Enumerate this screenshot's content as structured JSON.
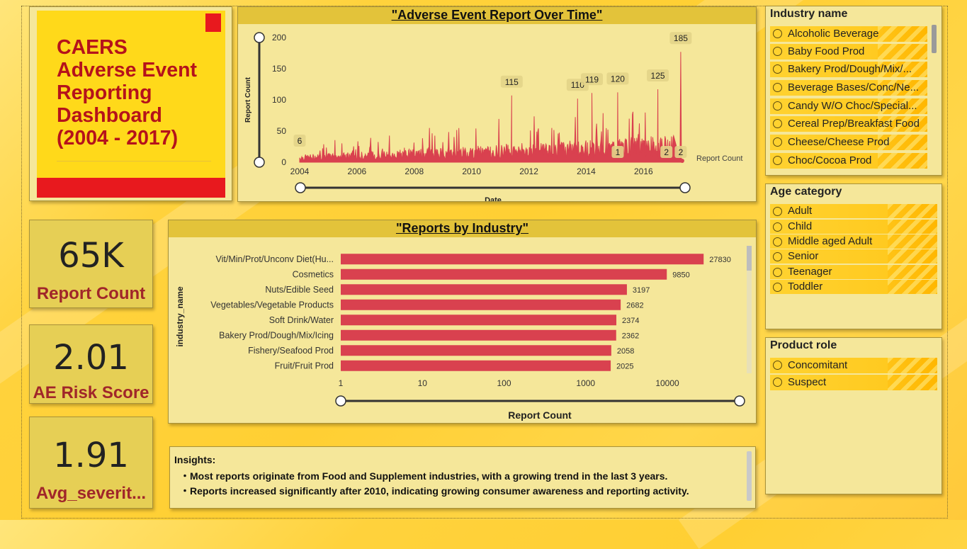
{
  "title_card": {
    "lines": [
      "CAERS",
      "Adverse Event",
      "Reporting",
      "Dashboard",
      "(2004 - 2017)"
    ]
  },
  "kpis": [
    {
      "value": "65K",
      "label": "Report Count"
    },
    {
      "value": "2.01",
      "label": "AE  Risk  Score"
    },
    {
      "value": "1.91",
      "label": "Avg_severit..."
    }
  ],
  "line_chart_title": "\"Adverse Event Report Over Time\"",
  "bar_chart_title": "\"Reports by Industry\"",
  "chart_data": [
    {
      "type": "line",
      "title": "\"Adverse Event Report Over Time\"",
      "xlabel": "Date",
      "ylabel": "Report Count",
      "legend": "Report Count",
      "ylim": [
        0,
        200
      ],
      "yticks": [
        "0",
        "50",
        "100",
        "150",
        "200"
      ],
      "xticks": [
        "2004",
        "2006",
        "2008",
        "2010",
        "2012",
        "2014",
        "2016"
      ],
      "x_range": [
        "2004",
        "2017"
      ],
      "annotations": [
        {
          "year": 2004.0,
          "value": 6,
          "label": "6"
        },
        {
          "year": 2011.4,
          "value": 115,
          "label": "115"
        },
        {
          "year": 2013.7,
          "value": 110,
          "label": "110"
        },
        {
          "year": 2014.2,
          "value": 119,
          "label": "119"
        },
        {
          "year": 2015.1,
          "value": 120,
          "label": "120"
        },
        {
          "year": 2016.5,
          "value": 125,
          "label": "125"
        },
        {
          "year": 2015.1,
          "value": 1,
          "label": "1"
        },
        {
          "year": 2016.8,
          "value": 2,
          "label": "2"
        },
        {
          "year": 2017.3,
          "value": 2,
          "label": "2"
        },
        {
          "year": 2017.3,
          "value": 185,
          "label": "185"
        }
      ],
      "color": "#d9414f"
    },
    {
      "type": "bar",
      "orientation": "horizontal",
      "title": "\"Reports by Industry\"",
      "xlabel": "Report Count",
      "ylabel": "industry_name",
      "xscale": "log",
      "xticks": [
        "1",
        "10",
        "100",
        "1000",
        "10000"
      ],
      "categories": [
        "Vit/Min/Prot/Unconv Diet(Hu...",
        "Cosmetics",
        "Nuts/Edible Seed",
        "Vegetables/Vegetable Products",
        "Soft Drink/Water",
        "Bakery Prod/Dough/Mix/Icing",
        "Fishery/Seafood Prod",
        "Fruit/Fruit Prod"
      ],
      "values": [
        27830,
        9850,
        3197,
        2682,
        2374,
        2362,
        2058,
        2025
      ],
      "color": "#d9414f"
    }
  ],
  "industry_slicer": {
    "title": "Industry name",
    "items": [
      "Alcoholic Beverage",
      "Baby Food Prod",
      "Bakery Prod/Dough/Mix/...",
      "Beverage Bases/Conc/Ne...",
      "Candy W/O Choc/Special...",
      "Cereal Prep/Breakfast Food",
      "Cheese/Cheese Prod",
      "Choc/Cocoa Prod"
    ]
  },
  "age_slicer": {
    "title": "Age category",
    "items": [
      "Adult",
      "Child",
      "Middle aged Adult",
      "Senior",
      "Teenager",
      "Toddler"
    ]
  },
  "role_slicer": {
    "title": "Product role",
    "items": [
      "Concomitant",
      "Suspect"
    ]
  },
  "insights": {
    "title": "Insights:",
    "bullets": [
      "・Most reports originate from Food and Supplement industries, with a growing trend in the last 3 years.",
      "・Reports increased significantly after 2010, indicating growing consumer awareness and reporting activity."
    ]
  }
}
